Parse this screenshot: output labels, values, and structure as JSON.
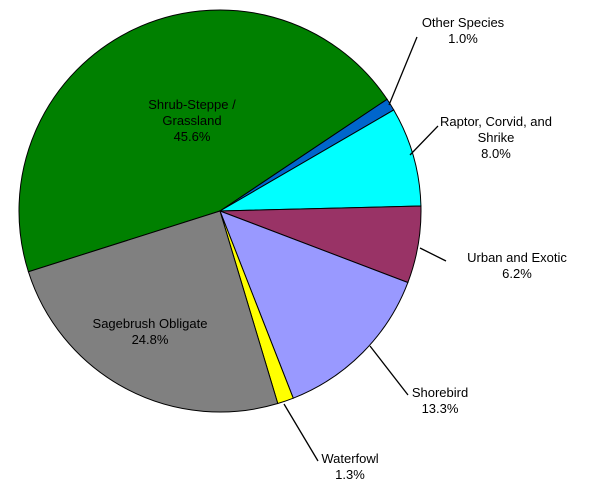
{
  "chart_data": {
    "type": "pie",
    "categories": [
      "Shrub-Steppe / Grassland",
      "Other Species",
      "Raptor, Corvid, and Shrike",
      "Urban and Exotic",
      "Shorebird",
      "Waterfowl",
      "Sagebrush Obligate"
    ],
    "values": [
      45.6,
      1.0,
      8.0,
      6.2,
      13.3,
      1.3,
      24.8
    ],
    "value_labels": [
      "45.6%",
      "1.0%",
      "8.0%",
      "6.2%",
      "13.3%",
      "1.3%",
      "24.8%"
    ],
    "colors": [
      "#008000",
      "#0066cc",
      "#00ffff",
      "#993366",
      "#9999ff",
      "#ffff00",
      "#808080"
    ]
  }
}
